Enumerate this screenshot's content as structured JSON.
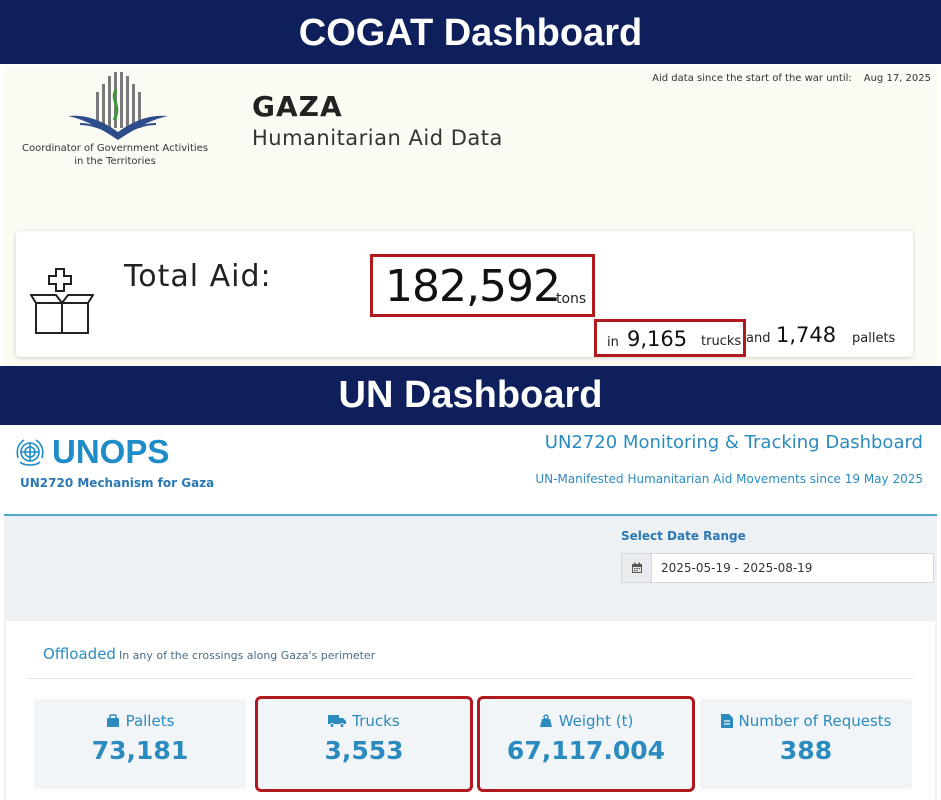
{
  "banners": {
    "top": "COGAT Dashboard",
    "middle": "UN Dashboard"
  },
  "cogat": {
    "org_line1": "Coordinator of Government Activities",
    "org_line2": "in the Territories",
    "title": "GAZA",
    "subtitle": "Humanitarian Aid Data",
    "since_label": "Aid data since the start of the war until:",
    "since_date": "Aug 17, 2025",
    "total_label": "Total Aid:",
    "total_value": "182,592",
    "total_unit": "tons",
    "in_label": "in",
    "trucks_value": "9,165",
    "trucks_unit": "trucks",
    "and_label": "and",
    "pallets_value": "1,748",
    "pallets_unit": "pallets"
  },
  "un": {
    "logo_text": "UNOPS",
    "mechanism": "UN2720 Mechanism for Gaza",
    "title": "UN2720 Monitoring & Tracking Dashboard",
    "subtitle": "UN-Manifested Humanitarian Aid Movements since 19 May 2025",
    "date_range_label": "Select Date Range",
    "date_range_value": "2025-05-19 - 2025-08-19",
    "offloaded": "Offloaded",
    "offloaded_sub": "In any of the crossings along Gaza's perimeter",
    "stats": [
      {
        "label": "Pallets",
        "value": "73,181",
        "icon": "pallets-icon"
      },
      {
        "label": "Trucks",
        "value": "3,553",
        "icon": "truck-icon"
      },
      {
        "label": "Weight (t)",
        "value": "67,117.004",
        "icon": "weight-icon"
      },
      {
        "label": "Number of Requests",
        "value": "388",
        "icon": "file-icon"
      }
    ]
  },
  "colors": {
    "banner": "#0e1f5b",
    "highlight": "#b01a1e",
    "un_blue": "#2b8bbf",
    "unops_blue": "#1e8cc7"
  }
}
